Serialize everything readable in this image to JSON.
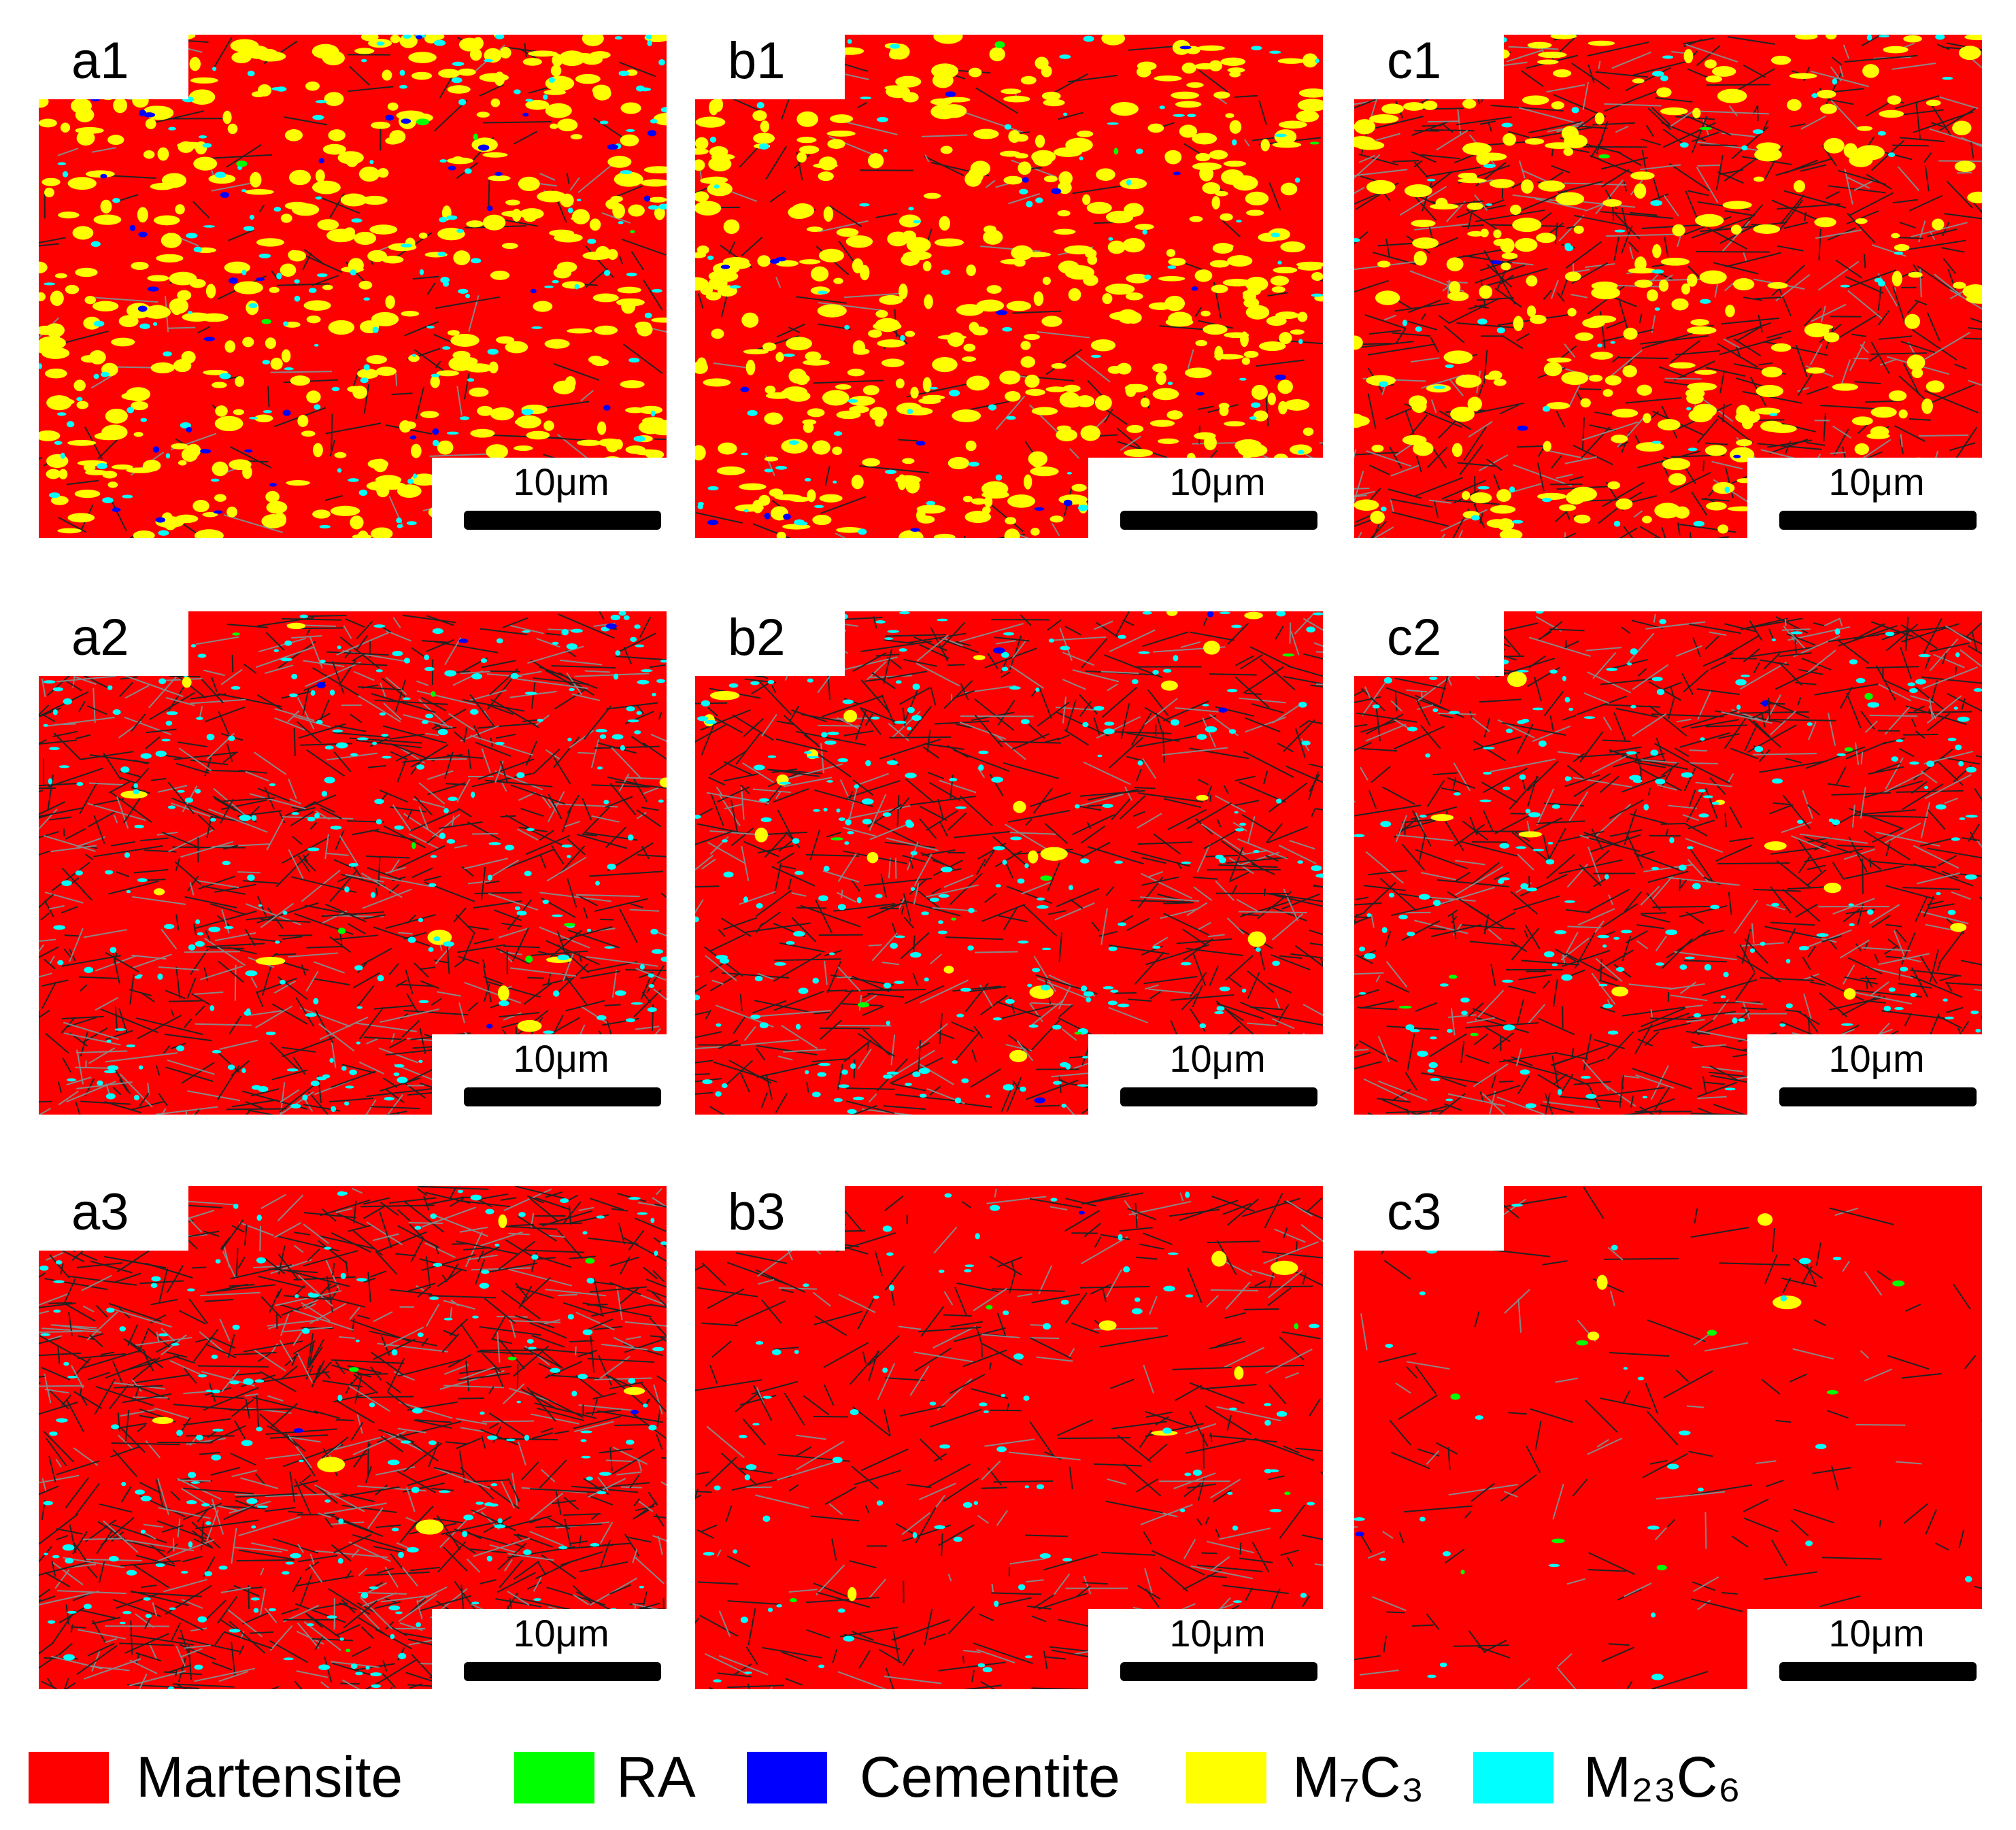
{
  "panels": [
    {
      "label": "a1",
      "scale_bar": "10μm"
    },
    {
      "label": "b1",
      "scale_bar": "10μm"
    },
    {
      "label": "c1",
      "scale_bar": "10μm"
    },
    {
      "label": "a2",
      "scale_bar": "10μm"
    },
    {
      "label": "b2",
      "scale_bar": "10μm"
    },
    {
      "label": "c2",
      "scale_bar": "10μm"
    },
    {
      "label": "a3",
      "scale_bar": "10μm"
    },
    {
      "label": "b3",
      "scale_bar": "10μm"
    },
    {
      "label": "c3",
      "scale_bar": "10μm"
    }
  ],
  "legend": [
    {
      "name": "Martensite",
      "color": "#ff0000"
    },
    {
      "name": "RA",
      "color": "#00ff00"
    },
    {
      "name": "Cementite",
      "color": "#0000ff"
    },
    {
      "name": "M₇C₃",
      "color": "#ffff00"
    },
    {
      "name": "M₂₃C₆",
      "color": "#00ffff"
    }
  ]
}
